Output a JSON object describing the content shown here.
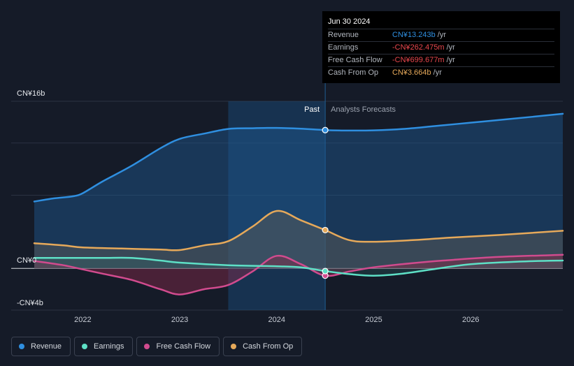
{
  "chart_data": {
    "type": "area",
    "y_axis": {
      "ylim": [
        -4,
        16
      ],
      "tick_labels": [
        "CN¥16b",
        "CN¥0",
        "-CN¥4b"
      ],
      "tick_values": [
        16,
        0,
        -4
      ]
    },
    "x_axis": {
      "xlim": [
        2021.5,
        2026.95
      ],
      "tick_labels": [
        "2022",
        "2023",
        "2024",
        "2025",
        "2026"
      ],
      "tick_values": [
        2022,
        2023,
        2024,
        2025,
        2026
      ]
    },
    "regions": {
      "past_label": "Past",
      "forecast_label": "Analysts Forecasts",
      "past_highlight_start": 2023.5,
      "divider": 2024.5
    },
    "series": [
      {
        "name": "Revenue",
        "color": "#2f8fe0",
        "points": [
          [
            2021.5,
            6.4
          ],
          [
            2021.7,
            6.7
          ],
          [
            2021.9,
            6.9
          ],
          [
            2022.0,
            7.2
          ],
          [
            2022.2,
            8.3
          ],
          [
            2022.5,
            9.8
          ],
          [
            2022.8,
            11.5
          ],
          [
            2023.0,
            12.4
          ],
          [
            2023.25,
            12.9
          ],
          [
            2023.5,
            13.35
          ],
          [
            2023.75,
            13.42
          ],
          [
            2024.0,
            13.45
          ],
          [
            2024.25,
            13.38
          ],
          [
            2024.5,
            13.243
          ],
          [
            2024.75,
            13.2
          ],
          [
            2025.0,
            13.22
          ],
          [
            2025.3,
            13.35
          ],
          [
            2025.6,
            13.6
          ],
          [
            2026.0,
            13.95
          ],
          [
            2026.4,
            14.3
          ],
          [
            2026.95,
            14.8
          ]
        ]
      },
      {
        "name": "Earnings",
        "color": "#5ee0c6",
        "points": [
          [
            2021.5,
            1.0
          ],
          [
            2021.8,
            1.0
          ],
          [
            2022.2,
            1.0
          ],
          [
            2022.5,
            1.0
          ],
          [
            2022.8,
            0.75
          ],
          [
            2023.0,
            0.55
          ],
          [
            2023.5,
            0.3
          ],
          [
            2024.0,
            0.2
          ],
          [
            2024.25,
            0.1
          ],
          [
            2024.5,
            -0.262
          ],
          [
            2024.75,
            -0.55
          ],
          [
            2025.0,
            -0.7
          ],
          [
            2025.3,
            -0.5
          ],
          [
            2025.6,
            -0.1
          ],
          [
            2026.0,
            0.4
          ],
          [
            2026.5,
            0.65
          ],
          [
            2026.95,
            0.75
          ]
        ]
      },
      {
        "name": "Free Cash Flow",
        "color": "#d14b8e",
        "points": [
          [
            2021.5,
            0.7
          ],
          [
            2021.8,
            0.3
          ],
          [
            2022.0,
            -0.1
          ],
          [
            2022.2,
            -0.5
          ],
          [
            2022.5,
            -1.1
          ],
          [
            2022.8,
            -2.0
          ],
          [
            2023.0,
            -2.5
          ],
          [
            2023.25,
            -2.0
          ],
          [
            2023.5,
            -1.6
          ],
          [
            2023.75,
            -0.3
          ],
          [
            2024.0,
            1.2
          ],
          [
            2024.25,
            0.4
          ],
          [
            2024.5,
            -0.7
          ],
          [
            2024.75,
            -0.3
          ],
          [
            2025.0,
            0.1
          ],
          [
            2025.4,
            0.5
          ],
          [
            2025.8,
            0.8
          ],
          [
            2026.3,
            1.1
          ],
          [
            2026.95,
            1.3
          ]
        ]
      },
      {
        "name": "Cash From Op",
        "color": "#e6a95a",
        "points": [
          [
            2021.5,
            2.4
          ],
          [
            2021.8,
            2.2
          ],
          [
            2022.0,
            2.0
          ],
          [
            2022.4,
            1.9
          ],
          [
            2022.8,
            1.8
          ],
          [
            2023.0,
            1.75
          ],
          [
            2023.25,
            2.2
          ],
          [
            2023.5,
            2.6
          ],
          [
            2023.75,
            4.0
          ],
          [
            2024.0,
            5.5
          ],
          [
            2024.25,
            4.6
          ],
          [
            2024.5,
            3.664
          ],
          [
            2024.75,
            2.7
          ],
          [
            2025.0,
            2.55
          ],
          [
            2025.4,
            2.7
          ],
          [
            2025.8,
            2.95
          ],
          [
            2026.3,
            3.2
          ],
          [
            2026.95,
            3.6
          ]
        ]
      }
    ]
  },
  "tooltip": {
    "date": "Jun 30 2024",
    "rows": [
      {
        "label": "Revenue",
        "value": "CN¥13.243b",
        "unit": "/yr",
        "color": "#2f8fe0"
      },
      {
        "label": "Earnings",
        "value": "-CN¥262.475m",
        "unit": "/yr",
        "color": "#e8474d"
      },
      {
        "label": "Free Cash Flow",
        "value": "-CN¥699.677m",
        "unit": "/yr",
        "color": "#e8474d"
      },
      {
        "label": "Cash From Op",
        "value": "CN¥3.664b",
        "unit": "/yr",
        "color": "#e6a95a"
      }
    ]
  },
  "legend": [
    {
      "label": "Revenue",
      "color": "#2f8fe0"
    },
    {
      "label": "Earnings",
      "color": "#5ee0c6"
    },
    {
      "label": "Free Cash Flow",
      "color": "#d14b8e"
    },
    {
      "label": "Cash From Op",
      "color": "#e6a95a"
    }
  ]
}
